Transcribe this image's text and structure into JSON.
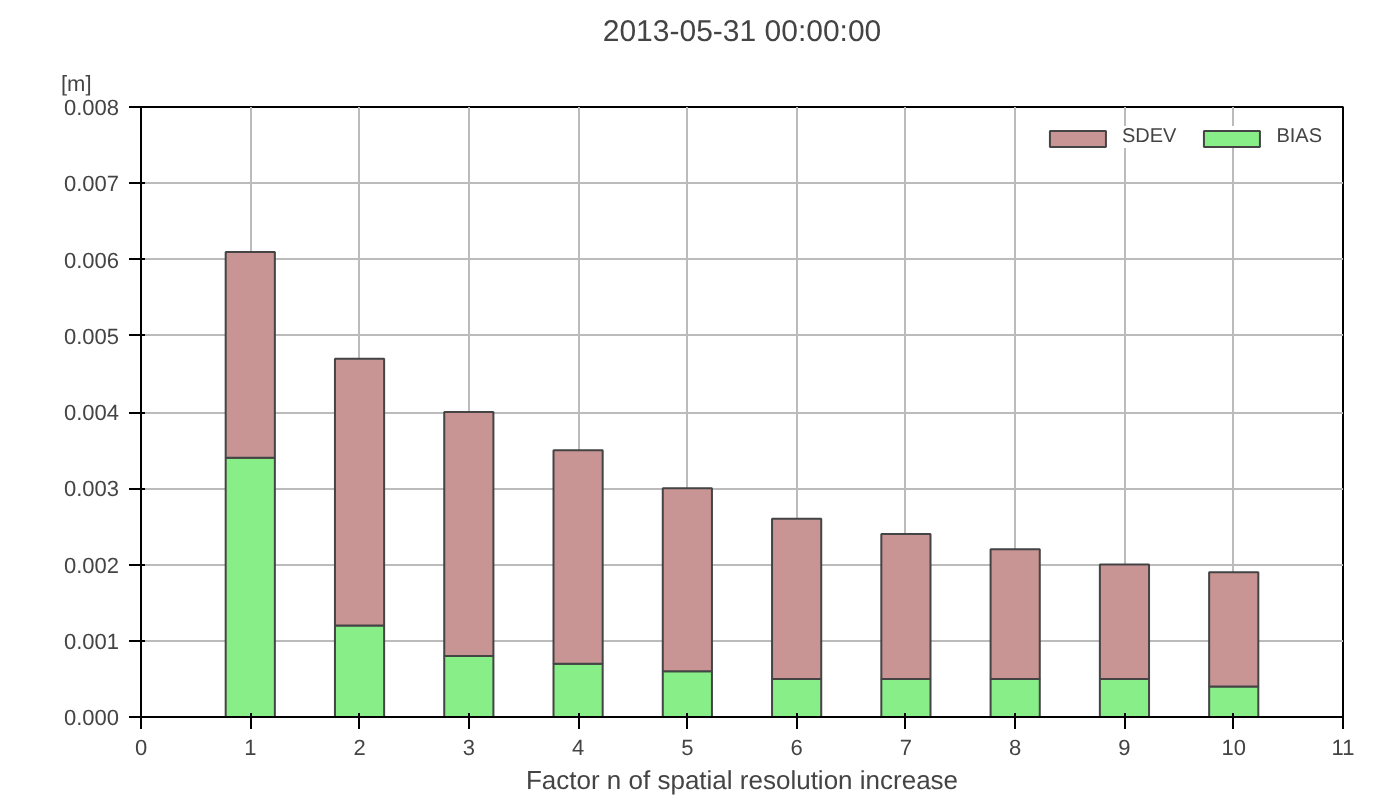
{
  "chart_data": {
    "type": "bar",
    "title": "2013-05-31 00:00:00",
    "xlabel": "Factor n of spatial resolution increase",
    "ylabel": "[m]",
    "stacked": true,
    "x": [
      1,
      2,
      3,
      4,
      5,
      6,
      7,
      8,
      9,
      10
    ],
    "series": [
      {
        "name": "BIAS",
        "color": "#88ee88",
        "values": [
          0.0034,
          0.0012,
          0.0008,
          0.0007,
          0.0006,
          0.0005,
          0.0005,
          0.0005,
          0.0005,
          0.0004
        ]
      },
      {
        "name": "SDEV",
        "color": "#c89494",
        "values": [
          0.0027,
          0.0035,
          0.0032,
          0.0028,
          0.0024,
          0.0021,
          0.0019,
          0.0017,
          0.0015,
          0.0015
        ]
      }
    ],
    "xlim": [
      0,
      11
    ],
    "xticks": [
      0,
      1,
      2,
      3,
      4,
      5,
      6,
      7,
      8,
      9,
      10,
      11
    ],
    "ylim": [
      0,
      0.008
    ],
    "yticks": [
      {
        "value": 0,
        "label": "0.000"
      },
      {
        "value": 0.001,
        "label": "0.001"
      },
      {
        "value": 0.002,
        "label": "0.002"
      },
      {
        "value": 0.003,
        "label": "0.003"
      },
      {
        "value": 0.004,
        "label": "0.004"
      },
      {
        "value": 0.005,
        "label": "0.005"
      },
      {
        "value": 0.006,
        "label": "0.006"
      },
      {
        "value": 0.007,
        "label": "0.007"
      },
      {
        "value": 0.008,
        "label": "0.008"
      }
    ],
    "grid": true,
    "legend": "top right"
  }
}
